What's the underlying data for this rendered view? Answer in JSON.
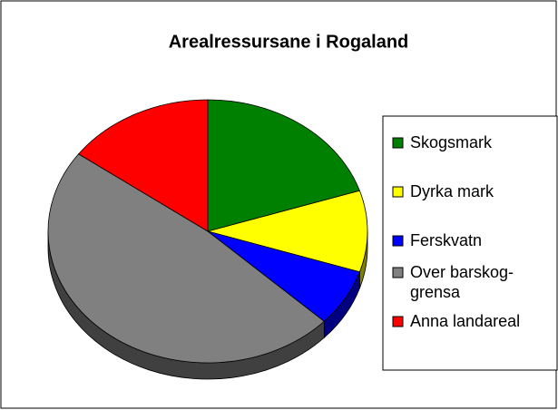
{
  "chart_data": {
    "type": "pie",
    "title": "Arealressursane i Rogaland",
    "categories": [
      "Skogsmark",
      "Dyrka mark",
      "Ferskvatn",
      "Over barskog-grensa",
      "Anna landareal"
    ],
    "values": [
      20,
      10,
      7,
      48,
      15
    ],
    "colors": [
      "#008000",
      "#ffff00",
      "#0000ff",
      "#808080",
      "#ff0000"
    ],
    "legend": "right"
  }
}
